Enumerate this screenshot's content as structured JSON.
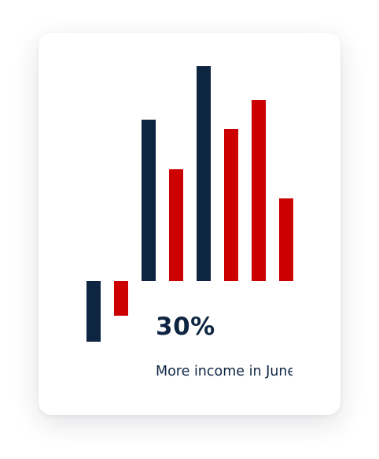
{
  "colors": {
    "navy": "#0e2542",
    "red": "#cc0000",
    "card_background": "#ffffff"
  },
  "chart_data": {
    "type": "bar",
    "note_orientation": "bars hang from two baselines; first pair drawn lower",
    "bars": [
      {
        "color": "navy",
        "value": 77
      },
      {
        "color": "red",
        "value": 44
      },
      {
        "color": "navy",
        "value": 205
      },
      {
        "color": "red",
        "value": 142
      },
      {
        "color": "navy",
        "value": 273
      },
      {
        "color": "red",
        "value": 193
      },
      {
        "color": "red",
        "value": 230
      },
      {
        "color": "red",
        "value": 105
      }
    ]
  },
  "stat": {
    "value": "30%",
    "caption": "More income in June"
  }
}
